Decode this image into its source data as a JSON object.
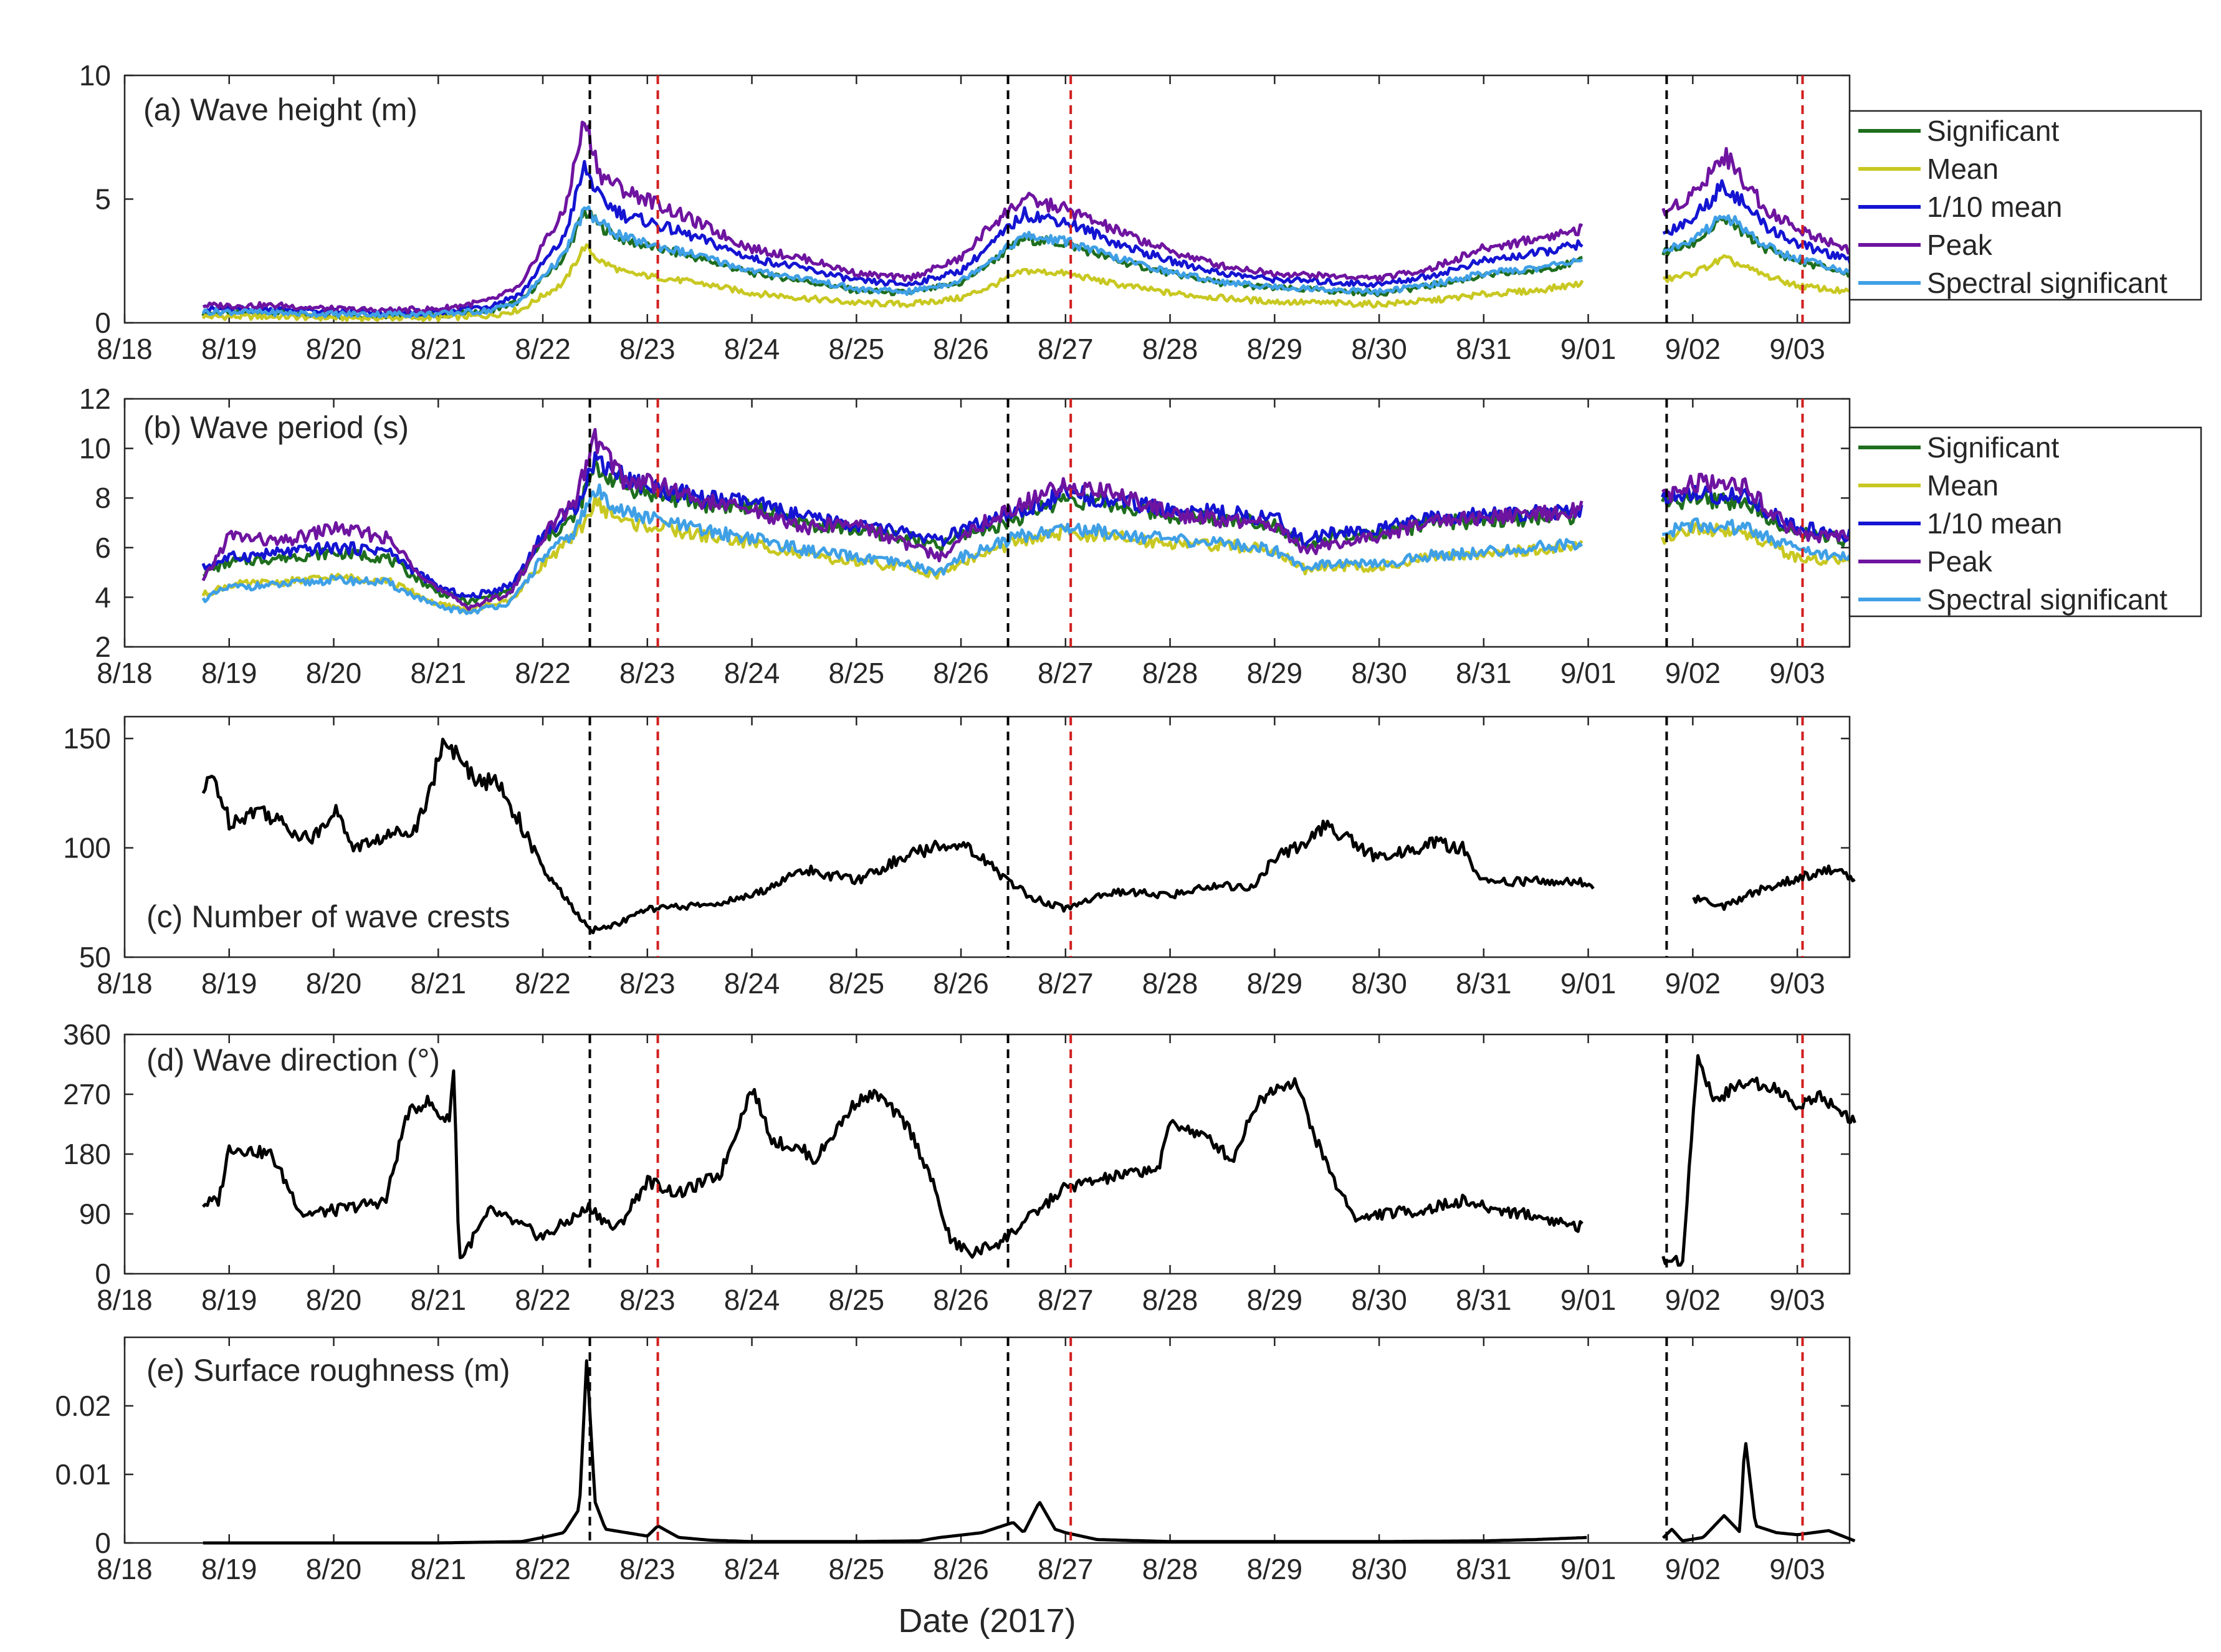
{
  "figure": {
    "xlabel": "Date (2017)"
  },
  "x_tick_labels": [
    "8/18",
    "8/19",
    "8/20",
    "8/21",
    "8/22",
    "8/23",
    "8/24",
    "8/25",
    "8/26",
    "8/27",
    "8/28",
    "8/29",
    "8/30",
    "8/31",
    "9/01",
    "9/02",
    "9/03"
  ],
  "colors": {
    "Significant": "#1e6e1e",
    "Mean": "#c8c822",
    "1/10 mean": "#1414d2",
    "Peak": "#6e14a0",
    "Spectral significant": "#3fa0e6",
    "black_line": "#000000",
    "dashed_black": "#000000",
    "dashed_red": "#d21e1e"
  },
  "chart_data": [
    {
      "id": "a",
      "type": "line",
      "title": "(a) Wave height (m)",
      "x_range_days": [
        0,
        16.5
      ],
      "ylim": [
        0,
        10
      ],
      "yticks": [
        0,
        5,
        10
      ],
      "ytick_labels": [
        "0",
        "5",
        "10"
      ],
      "legend": [
        "Significant",
        "Mean",
        "1/10 mean",
        "Peak",
        "Spectral significant"
      ],
      "legend_position": "outside-right",
      "gaps": [
        [
          14.0,
          14.7
        ]
      ],
      "x": [
        0.75,
        1.0,
        1.5,
        2.0,
        2.5,
        3.0,
        3.5,
        3.8,
        4.0,
        4.2,
        4.4,
        4.55,
        4.8,
        5.0,
        5.5,
        6.0,
        6.5,
        7.0,
        7.5,
        8.0,
        8.3,
        8.6,
        9.0,
        9.5,
        10.0,
        10.5,
        11.0,
        11.5,
        12.0,
        12.5,
        13.0,
        13.5,
        13.95,
        14.05,
        14.7,
        15.0,
        15.3,
        15.7,
        16.0,
        16.3,
        16.55
      ],
      "series": [
        {
          "name": "Significant",
          "values": [
            0.4,
            0.4,
            0.4,
            0.3,
            0.3,
            0.3,
            0.5,
            0.9,
            1.8,
            2.6,
            4.5,
            3.9,
            3.3,
            3.1,
            2.6,
            2.0,
            1.7,
            1.3,
            1.2,
            1.6,
            2.5,
            3.4,
            3.2,
            2.5,
            2.0,
            1.6,
            1.4,
            1.3,
            1.2,
            1.5,
            1.9,
            2.1,
            2.5,
            null,
            2.8,
            3.2,
            4.2,
            3.0,
            2.5,
            2.2,
            1.9
          ]
        },
        {
          "name": "Mean",
          "values": [
            0.25,
            0.25,
            0.25,
            0.2,
            0.2,
            0.2,
            0.3,
            0.55,
            1.1,
            1.6,
            3.1,
            2.5,
            2.0,
            1.9,
            1.6,
            1.2,
            1.0,
            0.8,
            0.75,
            1.0,
            1.5,
            2.1,
            2.0,
            1.55,
            1.2,
            1.0,
            0.85,
            0.8,
            0.75,
            0.9,
            1.15,
            1.3,
            1.6,
            null,
            1.7,
            2.0,
            2.6,
            1.9,
            1.5,
            1.35,
            1.2
          ]
        },
        {
          "name": "1/10 mean",
          "values": [
            0.55,
            0.55,
            0.55,
            0.45,
            0.4,
            0.45,
            0.7,
            1.2,
            2.4,
            3.4,
            6.3,
            5.0,
            4.3,
            4.1,
            3.4,
            2.6,
            2.2,
            1.7,
            1.55,
            2.1,
            3.2,
            4.4,
            4.1,
            3.2,
            2.5,
            2.0,
            1.75,
            1.65,
            1.55,
            1.9,
            2.5,
            2.8,
            3.2,
            null,
            3.6,
            4.2,
            5.6,
            3.9,
            3.2,
            2.8,
            2.4
          ]
        },
        {
          "name": "Peak",
          "values": [
            0.7,
            0.7,
            0.7,
            0.55,
            0.5,
            0.55,
            0.9,
            1.5,
            3.2,
            4.4,
            8.2,
            6.0,
            5.3,
            5.0,
            4.0,
            3.0,
            2.6,
            2.0,
            1.8,
            2.6,
            4.0,
            5.0,
            4.6,
            3.7,
            2.9,
            2.3,
            2.0,
            1.9,
            1.8,
            2.2,
            3.0,
            3.4,
            3.8,
            null,
            4.4,
            5.2,
            6.8,
            4.6,
            3.8,
            3.3,
            2.9
          ]
        },
        {
          "name": "Spectral significant",
          "values": [
            0.45,
            0.45,
            0.4,
            0.35,
            0.35,
            0.35,
            0.5,
            0.9,
            1.9,
            2.7,
            4.6,
            4.0,
            3.4,
            3.2,
            2.7,
            2.1,
            1.8,
            1.35,
            1.25,
            1.7,
            2.6,
            3.5,
            3.3,
            2.6,
            2.05,
            1.65,
            1.45,
            1.35,
            1.25,
            1.55,
            2.0,
            2.2,
            2.6,
            null,
            2.9,
            3.3,
            4.4,
            3.1,
            2.6,
            2.3,
            2.0
          ]
        }
      ],
      "vlines_black": [
        4.45,
        8.45,
        14.75
      ],
      "vlines_red": [
        5.1,
        9.05,
        16.05
      ]
    },
    {
      "id": "b",
      "type": "line",
      "title": "(b) Wave period (s)",
      "x_range_days": [
        0,
        16.5
      ],
      "ylim": [
        2,
        12
      ],
      "yticks": [
        2,
        4,
        6,
        8,
        10,
        12
      ],
      "ytick_labels": [
        "2",
        "4",
        "6",
        "8",
        "10",
        "12"
      ],
      "legend": [
        "Significant",
        "Mean",
        "1/10 mean",
        "Peak",
        "Spectral significant"
      ],
      "legend_position": "outside-right",
      "gaps": [
        [
          14.0,
          14.7
        ]
      ],
      "x": [
        0.75,
        1.0,
        1.5,
        2.0,
        2.5,
        3.0,
        3.3,
        3.7,
        4.0,
        4.3,
        4.5,
        4.8,
        5.0,
        5.5,
        6.0,
        6.5,
        7.0,
        7.5,
        7.8,
        8.0,
        8.5,
        9.0,
        9.5,
        10.0,
        10.5,
        11.0,
        11.3,
        11.5,
        12.0,
        12.5,
        13.0,
        13.5,
        13.95,
        14.05,
        14.7,
        15.0,
        15.5,
        16.0,
        16.5
      ],
      "series": [
        {
          "name": "Significant",
          "values": [
            5.0,
            5.4,
            5.6,
            5.8,
            5.6,
            4.2,
            3.8,
            4.3,
            6.3,
            7.2,
            9.2,
            8.5,
            8.2,
            7.8,
            7.6,
            7.0,
            6.7,
            6.4,
            6.0,
            6.5,
            7.1,
            8.0,
            7.7,
            7.3,
            7.2,
            7.0,
            6.0,
            6.4,
            6.5,
            7.0,
            7.1,
            7.2,
            7.3,
            null,
            7.8,
            8.0,
            7.8,
            6.6,
            6.3
          ]
        },
        {
          "name": "Mean",
          "values": [
            4.1,
            4.5,
            4.6,
            4.8,
            4.7,
            3.7,
            3.5,
            3.9,
            5.4,
            6.4,
            7.8,
            7.0,
            6.9,
            6.5,
            6.2,
            5.7,
            5.4,
            5.2,
            4.9,
            5.4,
            6.2,
            6.6,
            6.4,
            6.2,
            6.1,
            5.9,
            5.1,
            5.3,
            5.2,
            5.6,
            5.8,
            5.9,
            6.1,
            null,
            6.4,
            6.8,
            6.6,
            5.6,
            5.4
          ]
        },
        {
          "name": "1/10 mean",
          "values": [
            5.2,
            5.6,
            5.8,
            6.0,
            5.9,
            4.4,
            4.0,
            4.5,
            6.5,
            7.5,
            9.6,
            8.8,
            8.5,
            8.0,
            7.8,
            7.2,
            6.9,
            6.6,
            6.2,
            6.7,
            7.3,
            8.2,
            7.9,
            7.5,
            7.4,
            7.2,
            6.2,
            6.6,
            6.7,
            7.2,
            7.3,
            7.4,
            7.5,
            null,
            8.0,
            8.2,
            8.0,
            6.8,
            6.5
          ]
        },
        {
          "name": "Peak",
          "values": [
            4.6,
            6.5,
            6.2,
            6.8,
            6.4,
            4.3,
            3.6,
            4.2,
            6.5,
            7.8,
            10.4,
            8.6,
            8.7,
            7.9,
            7.5,
            6.8,
            7.0,
            6.1,
            5.6,
            6.5,
            7.6,
            8.5,
            8.2,
            7.4,
            7.1,
            6.9,
            5.9,
            6.1,
            6.4,
            7.1,
            7.2,
            7.3,
            7.6,
            null,
            7.9,
            8.6,
            8.4,
            6.5,
            6.4
          ]
        },
        {
          "name": "Spectral significant",
          "values": [
            3.9,
            4.4,
            4.5,
            4.7,
            4.6,
            3.6,
            3.4,
            3.8,
            5.6,
            6.6,
            8.3,
            7.4,
            7.2,
            6.7,
            6.4,
            5.9,
            5.6,
            5.3,
            5.0,
            5.6,
            6.4,
            6.8,
            6.6,
            6.3,
            6.2,
            5.9,
            5.2,
            5.4,
            5.3,
            5.7,
            5.8,
            6.0,
            6.2,
            null,
            6.6,
            6.9,
            6.8,
            5.9,
            5.6
          ]
        }
      ],
      "vlines_black": [
        4.45,
        8.45,
        14.75
      ],
      "vlines_red": [
        5.1,
        9.05,
        16.05
      ]
    },
    {
      "id": "c",
      "type": "line",
      "title": "(c) Number of wave crests",
      "x_range_days": [
        0,
        16.5
      ],
      "ylim": [
        50,
        160
      ],
      "yticks": [
        50,
        100,
        150
      ],
      "ytick_labels": [
        "50",
        "100",
        "150"
      ],
      "gaps": [
        [
          14.0,
          14.7
        ]
      ],
      "x": [
        0.75,
        0.85,
        1.0,
        1.3,
        1.6,
        1.8,
        2.0,
        2.2,
        2.5,
        2.8,
        3.0,
        3.1,
        3.2,
        3.4,
        3.6,
        3.8,
        4.0,
        4.2,
        4.45,
        4.7,
        5.0,
        5.3,
        5.6,
        6.0,
        6.5,
        7.0,
        7.5,
        8.0,
        8.2,
        8.5,
        8.7,
        9.0,
        9.3,
        9.6,
        10.0,
        10.4,
        10.8,
        11.0,
        11.2,
        11.5,
        12.0,
        12.5,
        12.8,
        13.0,
        13.5,
        13.95,
        14.05,
        14.7,
        15.0,
        15.3,
        15.6,
        16.0,
        16.3,
        16.55
      ],
      "series": [
        {
          "name": "Number of wave crests",
          "values": [
            125,
            133,
            112,
            118,
            108,
            104,
            118,
            100,
            105,
            110,
            140,
            150,
            138,
            132,
            128,
            110,
            90,
            78,
            62,
            65,
            72,
            73,
            74,
            78,
            90,
            85,
            97,
            103,
            95,
            83,
            77,
            72,
            78,
            80,
            78,
            83,
            82,
            95,
            100,
            110,
            95,
            102,
            100,
            84,
            85,
            84,
            80,
            null,
            77,
            73,
            80,
            86,
            90,
            86
          ]
        }
      ],
      "vlines_black": [
        4.45,
        8.45,
        14.75
      ],
      "vlines_red": [
        5.1,
        9.05,
        16.05
      ]
    },
    {
      "id": "d",
      "type": "line",
      "title": "(d) Wave direction (°)",
      "x_range_days": [
        0,
        16.5
      ],
      "ylim": [
        0,
        360
      ],
      "yticks": [
        0,
        90,
        180,
        270,
        360
      ],
      "ytick_labels": [
        "0",
        "90",
        "180",
        "270",
        "360"
      ],
      "gaps": [
        [
          14.0,
          14.7
        ]
      ],
      "x": [
        0.75,
        0.9,
        1.0,
        1.4,
        1.7,
        2.0,
        2.5,
        2.7,
        2.9,
        3.0,
        3.1,
        3.15,
        3.2,
        3.5,
        4.0,
        4.45,
        4.7,
        5.0,
        5.3,
        5.7,
        6.0,
        6.2,
        6.5,
        6.6,
        7.0,
        7.2,
        7.5,
        7.7,
        7.9,
        8.1,
        8.4,
        8.7,
        9.0,
        9.3,
        9.6,
        9.9,
        10.0,
        10.4,
        10.6,
        10.8,
        11.0,
        11.2,
        11.4,
        11.6,
        11.8,
        12.0,
        12.4,
        12.8,
        13.0,
        13.4,
        13.95,
        14.05,
        14.7,
        14.9,
        15.05,
        15.2,
        15.5,
        15.8,
        16.0,
        16.2,
        16.55
      ],
      "series": [
        {
          "name": "Wave direction",
          "values": [
            105,
            110,
            190,
            180,
            90,
            95,
            110,
            240,
            260,
            240,
            230,
            310,
            20,
            95,
            55,
            100,
            65,
            140,
            120,
            150,
            280,
            200,
            185,
            170,
            260,
            270,
            220,
            150,
            50,
            30,
            50,
            90,
            130,
            140,
            150,
            160,
            230,
            200,
            170,
            250,
            280,
            290,
            200,
            130,
            80,
            90,
            95,
            110,
            100,
            90,
            70,
            null,
            20,
            20,
            330,
            260,
            290,
            280,
            250,
            270,
            230
          ]
        }
      ],
      "vlines_black": [
        4.45,
        8.45,
        14.75
      ],
      "vlines_red": [
        5.1,
        9.05,
        16.05
      ]
    },
    {
      "id": "e",
      "type": "line",
      "title": "(e) Surface roughness (m)",
      "x_range_days": [
        0,
        16.5
      ],
      "ylim": [
        0,
        0.03
      ],
      "yticks": [
        0,
        0.01,
        0.02
      ],
      "ytick_labels": [
        "0",
        "0.01",
        "0.02"
      ],
      "gaps": [
        [
          14.0,
          14.7
        ]
      ],
      "x": [
        0.75,
        2.0,
        3.0,
        3.8,
        4.0,
        4.2,
        4.35,
        4.42,
        4.5,
        4.6,
        4.8,
        5.0,
        5.1,
        5.3,
        5.6,
        6.0,
        7.0,
        7.6,
        7.8,
        8.2,
        8.5,
        8.6,
        8.75,
        8.9,
        9.0,
        9.3,
        10.0,
        11.0,
        12.0,
        13.0,
        13.5,
        14.0,
        14.05,
        14.7,
        14.8,
        14.9,
        15.1,
        15.3,
        15.45,
        15.5,
        15.6,
        15.8,
        16.0,
        16.3,
        16.55
      ],
      "series": [
        {
          "name": "Surface roughness",
          "values": [
            0,
            0,
            0,
            0.0002,
            0.0008,
            0.0015,
            0.005,
            0.027,
            0.006,
            0.002,
            0.0015,
            0.001,
            0.0025,
            0.0008,
            0.0004,
            0.0002,
            0.0002,
            0.0003,
            0.0008,
            0.0015,
            0.003,
            0.0015,
            0.006,
            0.002,
            0.0015,
            0.0005,
            0.0002,
            0.0002,
            0.0002,
            0.0003,
            0.0005,
            0.0008,
            null,
            0.0005,
            0.002,
            0.0003,
            0.0008,
            0.004,
            0.0016,
            0.0155,
            0.0025,
            0.0015,
            0.0012,
            0.0018,
            0.0003
          ]
        }
      ],
      "vlines_black": [
        4.45,
        8.45,
        14.75
      ],
      "vlines_red": [
        5.1,
        9.05,
        16.05
      ]
    }
  ]
}
